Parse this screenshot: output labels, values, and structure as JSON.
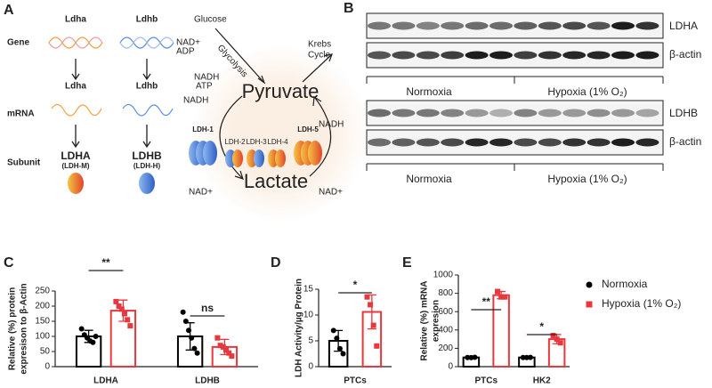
{
  "panels": {
    "A": {
      "letter": "A",
      "row_labels": [
        "Gene",
        "mRNA",
        "Subunit"
      ],
      "genes": [
        "Ldha",
        "Ldhb"
      ],
      "mrnas": [
        "Ldha",
        "Ldhb"
      ],
      "subunits": [
        "LDHA",
        "LDHB"
      ],
      "subunit_notes": [
        "(LDH-M)",
        "(LDH-H)"
      ],
      "pathway": {
        "glucose": "Glucose",
        "glycolysis": "Glycolysis",
        "nad_adp": [
          "NAD+",
          "ADP"
        ],
        "nadh_atp": [
          "NADH",
          "ATP"
        ],
        "pyruvate": "Pyruvate",
        "krebs": [
          "Krebs",
          "Cycle"
        ],
        "nadh_left": "NADH",
        "nadh_right": "NADH",
        "isozymes": [
          "LDH-1",
          "LDH-2",
          "LDH-3",
          "LDH-4",
          "LDH-5"
        ],
        "nad_left": "NAD+",
        "nad_right": "NAD+",
        "lactate": "Lactate"
      }
    },
    "B": {
      "letter": "B",
      "blots": [
        {
          "protein": "LDHA",
          "loading": "β-actin",
          "groups": [
            "Normoxia",
            "Hypoxia (1% O₂)"
          ]
        },
        {
          "protein": "LDHB",
          "loading": "β-actin",
          "groups": [
            "Normoxia",
            "Hypoxia (1% O₂)"
          ]
        }
      ]
    }
  },
  "chart_data": [
    {
      "type": "bar",
      "panel_letter": "C",
      "ylabel": [
        "Relative (%) protein",
        "expresison to β-Actin"
      ],
      "categories": [
        "LDHA",
        "LDHB"
      ],
      "series": [
        {
          "color": "#000000",
          "values": [
            100,
            100
          ],
          "errors": [
            20,
            45
          ],
          "points": [
            [
              125,
              105,
              95,
              85,
              80,
              100
            ],
            [
              180,
              150,
              120,
              95,
              60,
              45
            ]
          ]
        },
        {
          "color": "#e8373d",
          "values": [
            185,
            65
          ],
          "errors": [
            35,
            25
          ],
          "points": [
            [
              215,
              200,
              190,
              175,
              155,
              135
            ],
            [
              95,
              70,
              65,
              55,
              45,
              35
            ]
          ]
        }
      ],
      "significance": [
        "**",
        "ns"
      ],
      "ylim": [
        0,
        250
      ],
      "yticks": [
        0,
        50,
        100,
        150,
        200,
        250
      ]
    },
    {
      "type": "bar",
      "panel_letter": "D",
      "ylabel": [
        "LDH Activity/µg Protein"
      ],
      "categories": [
        "PTCs"
      ],
      "series": [
        {
          "color": "#000000",
          "values": [
            5
          ],
          "errors": [
            2
          ],
          "points": [
            [
              7,
              5.5,
              3.5,
              2.5
            ]
          ]
        },
        {
          "color": "#e8373d",
          "values": [
            10.6
          ],
          "errors": [
            3.3
          ],
          "points": [
            [
              13.5,
              12,
              8,
              4
            ]
          ]
        }
      ],
      "significance": [
        "*"
      ],
      "ylim": [
        0,
        15
      ],
      "yticks": [
        0,
        5,
        10,
        15
      ]
    },
    {
      "type": "bar",
      "panel_letter": "E",
      "ylabel": [
        "Relative (%) mRNA",
        "expresion"
      ],
      "categories": [
        "PTCs",
        "HK2"
      ],
      "series": [
        {
          "name": "Normoxia",
          "color": "#000000",
          "values": [
            100,
            100
          ],
          "errors": [
            5,
            5
          ],
          "points": [
            [
              100,
              98,
              102
            ],
            [
              100,
              99,
              101
            ]
          ]
        },
        {
          "name": "Hypoxia (1% O₂)",
          "color": "#e8373d",
          "values": [
            780,
            300
          ],
          "errors": [
            40,
            50
          ],
          "points": [
            [
              820,
              760,
              760
            ],
            [
              340,
              300,
              260
            ]
          ]
        }
      ],
      "significance": [
        "**",
        "*"
      ],
      "ylim": [
        0,
        1000
      ],
      "yticks": [
        0,
        200,
        400,
        600,
        800,
        1000
      ],
      "legend": "right"
    }
  ]
}
